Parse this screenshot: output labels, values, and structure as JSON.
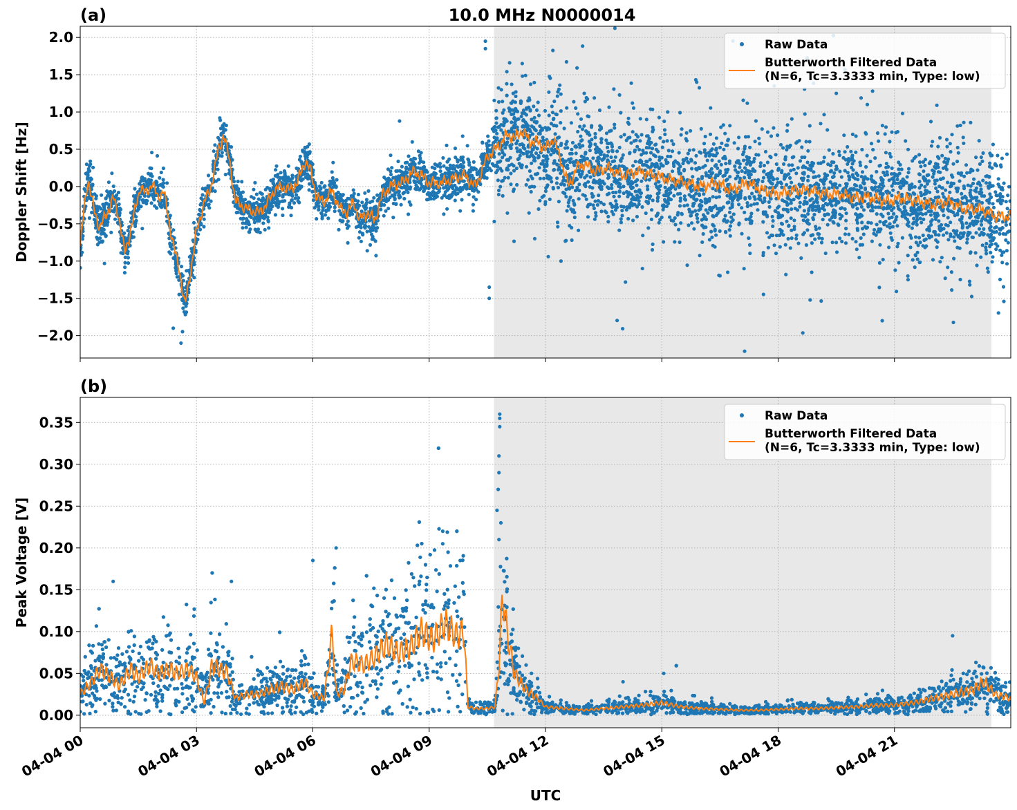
{
  "title": "10.0 MHz N0000014",
  "colors": {
    "raw": "#1f77b4",
    "filtered": "#ff7f0e",
    "night_shade": "#e8e8e8",
    "grid": "#b0b0b0"
  },
  "legend": {
    "raw_label": "Raw Data",
    "filtered_line1": "Butterworth Filtered Data",
    "filtered_line2": "(N=6, Tc=3.3333 min, Type: low)"
  },
  "xaxis": {
    "label": "UTC",
    "range_hours": [
      0,
      24
    ],
    "ticks": [
      {
        "hour": 0,
        "label": "04-04 00"
      },
      {
        "hour": 3,
        "label": "04-04 03"
      },
      {
        "hour": 6,
        "label": "04-04 06"
      },
      {
        "hour": 9,
        "label": "04-04 09"
      },
      {
        "hour": 12,
        "label": "04-04 12"
      },
      {
        "hour": 15,
        "label": "04-04 15"
      },
      {
        "hour": 18,
        "label": "04-04 18"
      },
      {
        "hour": 21,
        "label": "04-04 21"
      }
    ]
  },
  "chart_data": [
    {
      "type": "scatter",
      "panel_label": "(a)",
      "ylabel": "Doppler Shift [Hz]",
      "ylim": [
        -2.3,
        2.15
      ],
      "yticks": [
        -2.0,
        -1.5,
        -1.0,
        -0.5,
        0.0,
        0.5,
        1.0,
        1.5,
        2.0
      ],
      "ytick_labels": [
        "−2.0",
        "−1.5",
        "−1.0",
        "−0.5",
        "0.0",
        "0.5",
        "1.0",
        "1.5",
        "2.0"
      ],
      "grid": true,
      "legend_position": "top-right",
      "shaded_x": [
        10.67,
        23.5
      ],
      "filtered_series": {
        "x": [
          0,
          0.1,
          0.2,
          0.35,
          0.5,
          0.7,
          0.85,
          1.0,
          1.15,
          1.25,
          1.4,
          1.55,
          1.7,
          1.85,
          2.0,
          2.15,
          2.3,
          2.45,
          2.55,
          2.7,
          2.8,
          3.0,
          3.2,
          3.35,
          3.55,
          3.7,
          3.85,
          4.0,
          4.3,
          4.6,
          4.8,
          5.0,
          5.2,
          5.4,
          5.6,
          5.8,
          5.95,
          6.1,
          6.3,
          6.5,
          6.7,
          6.9,
          7.05,
          7.2,
          7.4,
          7.6,
          7.8,
          8.0,
          8.3,
          8.6,
          8.8,
          9.0,
          9.3,
          9.6,
          9.9,
          10.2,
          10.5,
          10.8,
          11.0,
          11.2,
          11.4,
          11.6,
          11.8,
          12.0,
          12.2,
          12.4,
          12.6,
          12.8,
          13.0,
          13.3,
          13.6,
          14.0,
          14.4,
          14.8,
          15.2,
          15.6,
          16.0,
          16.4,
          16.8,
          17.2,
          17.6,
          18.0,
          18.4,
          18.8,
          19.2,
          19.6,
          20.0,
          20.4,
          20.8,
          21.2,
          21.6,
          22.0,
          22.4,
          22.8,
          23.2,
          23.6,
          24.0
        ],
        "y": [
          -0.8,
          -0.3,
          0.1,
          -0.3,
          -0.55,
          -0.35,
          -0.15,
          -0.4,
          -0.9,
          -0.7,
          -0.35,
          0.0,
          -0.1,
          0.05,
          -0.15,
          -0.05,
          -0.5,
          -0.9,
          -1.1,
          -1.6,
          -1.3,
          -0.6,
          -0.2,
          -0.05,
          0.45,
          0.7,
          0.35,
          -0.2,
          -0.3,
          -0.35,
          -0.25,
          -0.05,
          0.0,
          -0.05,
          0.05,
          0.35,
          0.2,
          -0.15,
          -0.2,
          -0.05,
          -0.3,
          -0.35,
          -0.2,
          -0.45,
          -0.35,
          -0.45,
          -0.1,
          0.0,
          0.05,
          0.2,
          0.15,
          0.05,
          0.05,
          0.1,
          0.15,
          0.0,
          0.4,
          0.55,
          0.7,
          0.65,
          0.75,
          0.6,
          0.6,
          0.5,
          0.65,
          0.35,
          0.0,
          0.25,
          0.3,
          0.2,
          0.25,
          0.15,
          0.2,
          0.15,
          0.1,
          0.05,
          0.0,
          0.05,
          -0.05,
          0.05,
          -0.05,
          -0.1,
          -0.05,
          -0.05,
          -0.1,
          -0.1,
          -0.15,
          -0.15,
          -0.2,
          -0.15,
          -0.2,
          -0.25,
          -0.2,
          -0.3,
          -0.3,
          -0.4,
          -0.4
        ]
      },
      "raw_scatter": {
        "spread_before_sunset": 0.12,
        "spread_after_sunset": 0.35,
        "outlier_max": 1.95,
        "outlier_min": -2.1
      }
    },
    {
      "type": "scatter",
      "panel_label": "(b)",
      "ylabel": "Peak Voltage [V]",
      "ylim": [
        -0.015,
        0.38
      ],
      "yticks": [
        0.0,
        0.05,
        0.1,
        0.15,
        0.2,
        0.25,
        0.3,
        0.35
      ],
      "ytick_labels": [
        "0.00",
        "0.05",
        "0.10",
        "0.15",
        "0.20",
        "0.25",
        "0.30",
        "0.35"
      ],
      "grid": true,
      "legend_position": "top-right",
      "shaded_x": [
        10.67,
        23.5
      ],
      "filtered_series": {
        "x": [
          0,
          0.3,
          0.5,
          0.8,
          1.0,
          1.3,
          1.5,
          1.8,
          2.0,
          2.3,
          2.5,
          2.8,
          3.0,
          3.2,
          3.4,
          3.6,
          3.8,
          4.0,
          4.3,
          4.6,
          4.9,
          5.2,
          5.5,
          5.8,
          6.0,
          6.3,
          6.5,
          6.6,
          6.8,
          7.0,
          7.3,
          7.6,
          7.9,
          8.2,
          8.5,
          8.8,
          9.1,
          9.4,
          9.7,
          9.9,
          10.0,
          10.2,
          10.5,
          10.7,
          10.8,
          10.9,
          11.0,
          11.2,
          11.5,
          11.8,
          12.0,
          12.5,
          13.0,
          13.5,
          14.0,
          14.5,
          15.0,
          15.5,
          16.0,
          16.5,
          17.0,
          17.5,
          18.0,
          18.5,
          19.0,
          19.5,
          20.0,
          20.5,
          21.0,
          21.5,
          22.0,
          22.5,
          23.0,
          23.3,
          23.6,
          24.0
        ],
        "y": [
          0.025,
          0.04,
          0.055,
          0.045,
          0.035,
          0.055,
          0.045,
          0.06,
          0.05,
          0.055,
          0.05,
          0.055,
          0.045,
          0.015,
          0.06,
          0.055,
          0.05,
          0.02,
          0.025,
          0.025,
          0.03,
          0.035,
          0.03,
          0.04,
          0.025,
          0.02,
          0.1,
          0.025,
          0.03,
          0.065,
          0.06,
          0.07,
          0.085,
          0.075,
          0.08,
          0.1,
          0.09,
          0.11,
          0.095,
          0.1,
          0.01,
          0.008,
          0.008,
          0.01,
          0.06,
          0.15,
          0.1,
          0.05,
          0.03,
          0.02,
          0.01,
          0.008,
          0.006,
          0.008,
          0.01,
          0.012,
          0.015,
          0.01,
          0.008,
          0.007,
          0.006,
          0.006,
          0.007,
          0.008,
          0.008,
          0.009,
          0.01,
          0.012,
          0.012,
          0.015,
          0.02,
          0.025,
          0.03,
          0.04,
          0.025,
          0.02
        ]
      },
      "raw_scatter": {
        "spread_ratio_before_sunset": 0.5,
        "spread_ratio_after_sunset": 0.45,
        "outlier_max": 0.36
      }
    }
  ]
}
